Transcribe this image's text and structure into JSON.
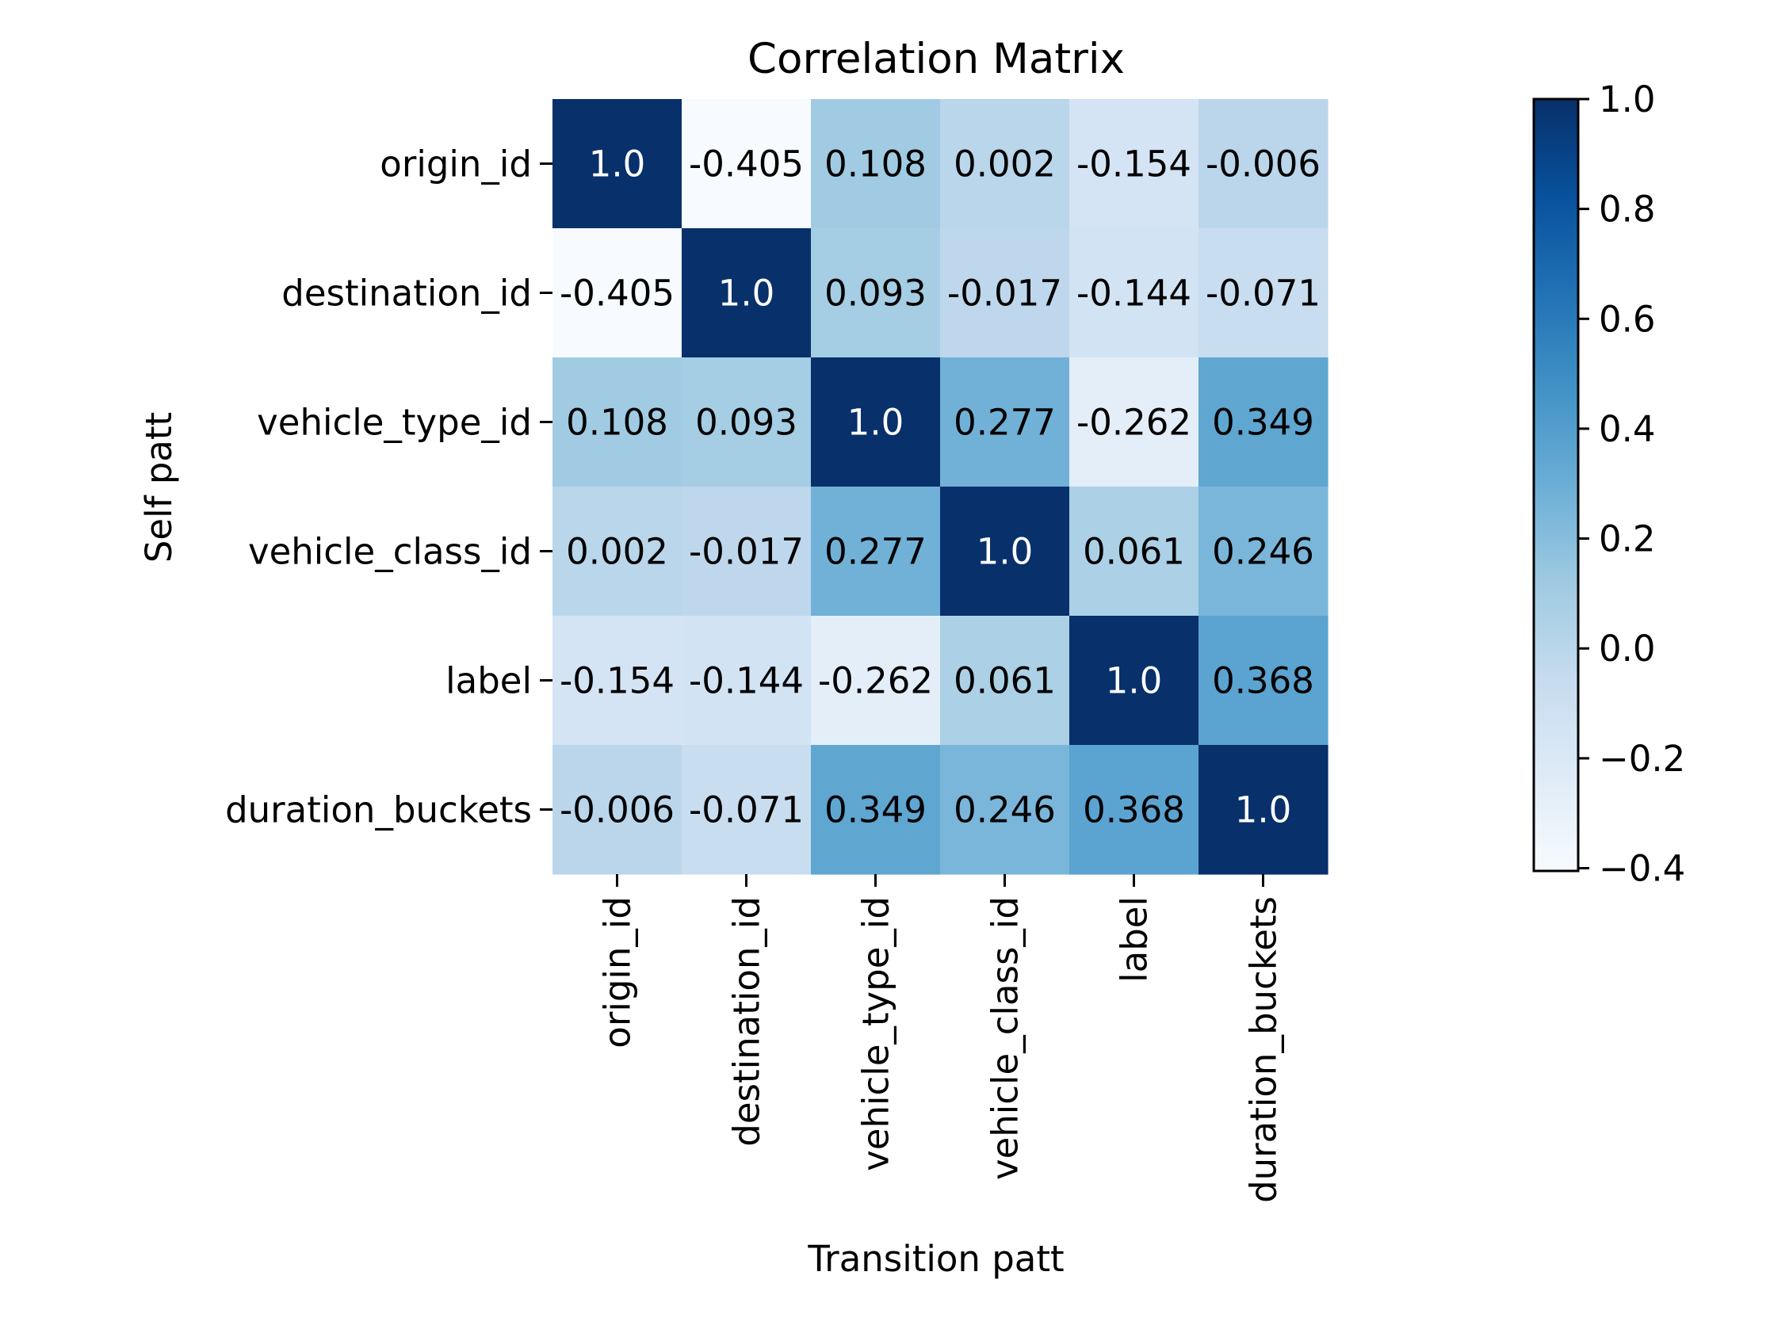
{
  "chart_data": {
    "type": "heatmap",
    "title": "Correlation Matrix",
    "xlabel": "Transition patt",
    "ylabel": "Self patt",
    "x_categories": [
      "origin_id",
      "destination_id",
      "vehicle_type_id",
      "vehicle_class_id",
      "label",
      "duration_buckets"
    ],
    "y_categories": [
      "origin_id",
      "destination_id",
      "vehicle_type_id",
      "vehicle_class_id",
      "label",
      "duration_buckets"
    ],
    "values": [
      [
        "1.0",
        "-0.405",
        "0.108",
        "0.002",
        "-0.154",
        "-0.006"
      ],
      [
        "-0.405",
        "1.0",
        "0.093",
        "-0.017",
        "-0.144",
        "-0.071"
      ],
      [
        "0.108",
        "0.093",
        "1.0",
        "0.277",
        "-0.262",
        "0.349"
      ],
      [
        "0.002",
        "-0.017",
        "0.277",
        "1.0",
        "0.061",
        "0.246"
      ],
      [
        "-0.154",
        "-0.144",
        "-0.262",
        "0.061",
        "1.0",
        "0.368"
      ],
      [
        "-0.006",
        "-0.071",
        "0.349",
        "0.246",
        "0.368",
        "1.0"
      ]
    ],
    "colormap": "Blues",
    "value_range": [
      -0.405,
      1.0
    ],
    "colorbar": {
      "ticks": [
        1.0,
        0.8,
        0.6,
        0.4,
        0.2,
        0.0,
        -0.2,
        -0.4
      ],
      "tick_labels": [
        "1.0",
        "0.8",
        "0.6",
        "0.4",
        "0.2",
        "0.0",
        "−0.2",
        "−0.4"
      ],
      "position": "right"
    },
    "text_colors": {
      "on_dark": "#ffffff",
      "on_light": "#000000"
    },
    "grid": false
  }
}
